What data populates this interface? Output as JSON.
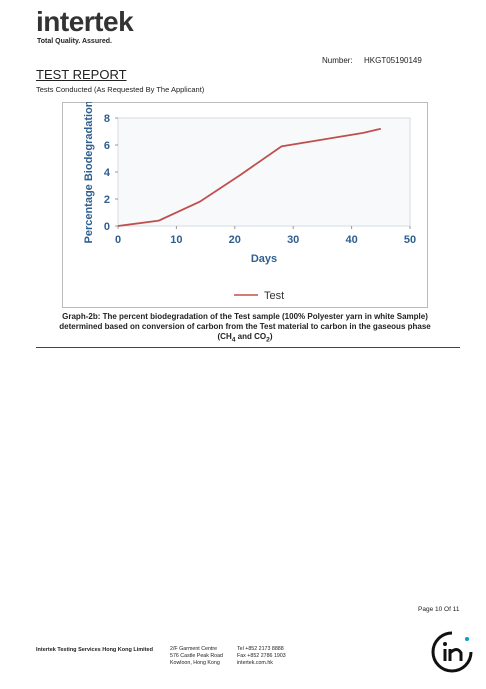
{
  "header": {
    "logo": "intertek",
    "tagline": "Total Quality. Assured.",
    "number_label": "Number:",
    "number": "HKGT05190149"
  },
  "report": {
    "title": "TEST REPORT",
    "subtitle": "Tests Conducted (As Requested By The Applicant)"
  },
  "chart_data": {
    "type": "line",
    "ylabel": "Percentage Biodegradation",
    "xlabel": "Days",
    "x": [
      0,
      7,
      14,
      21,
      28,
      35,
      42,
      45
    ],
    "series": [
      {
        "name": "Test",
        "color": "#c0504d",
        "values": [
          0,
          0.4,
          1.8,
          3.8,
          5.9,
          6.4,
          6.9,
          7.2
        ]
      }
    ],
    "xlim": [
      0,
      50
    ],
    "xticks": [
      0,
      10,
      20,
      30,
      40,
      50
    ],
    "ylim": [
      0,
      8
    ],
    "yticks": [
      0,
      2,
      4,
      6,
      8
    ],
    "grid": false,
    "legend": "bottom"
  },
  "caption": {
    "main": "Graph-2b: The percent biodegradation of the Test sample (100% Polyester yarn in white Sample) determined based on conversion of carbon from the Test material to carbon in the gaseous phase (CH",
    "sub1": "4",
    "mid": " and CO",
    "sub2": "2",
    "end": ")"
  },
  "page": "Page 10 Of 11",
  "footer": {
    "company": "Intertek Testing Services Hong Kong Limited",
    "address": [
      "2/F Garment Centre",
      "576 Castle Peak Road",
      "Kowloon, Hong Kong"
    ],
    "contact": [
      "Tel +852 2173 8888",
      "Fax +852 2786 1903",
      "intertek.com.hk"
    ]
  }
}
